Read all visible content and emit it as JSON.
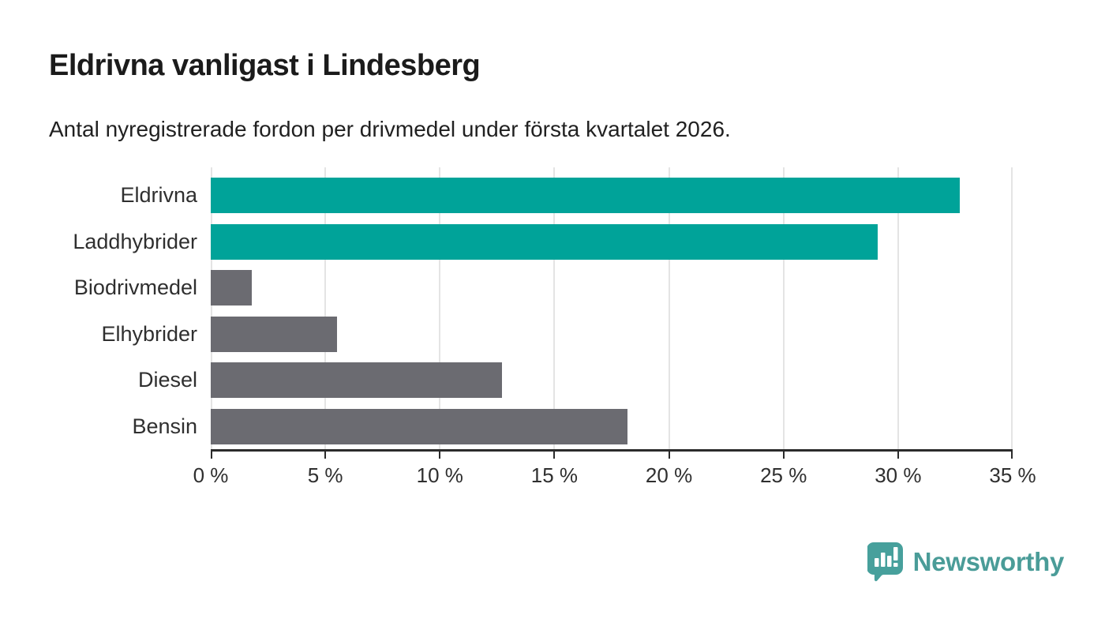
{
  "header": {
    "title": "Eldrivna vanligast i Lindesberg",
    "subtitle": "Antal nyregistrerade fordon per drivmedel under första kvartalet 2026."
  },
  "chart_data": {
    "type": "bar",
    "orientation": "horizontal",
    "title": "Eldrivna vanligast i Lindesberg",
    "subtitle": "Antal nyregistrerade fordon per drivmedel under första kvartalet 2026.",
    "categories": [
      "Eldrivna",
      "Laddhybrider",
      "Biodrivmedel",
      "Elhybrider",
      "Diesel",
      "Bensin"
    ],
    "values": [
      32.7,
      29.1,
      1.8,
      5.5,
      12.7,
      18.2
    ],
    "unit": "%",
    "bar_colors": [
      "#00a399",
      "#00a399",
      "#6b6b71",
      "#6b6b71",
      "#6b6b71",
      "#6b6b71"
    ],
    "xlim": [
      0,
      35
    ],
    "ticks": [
      0,
      5,
      10,
      15,
      20,
      25,
      30,
      35
    ],
    "tick_labels": [
      "0 %",
      "5 %",
      "10 %",
      "15 %",
      "20 %",
      "25 %",
      "30 %",
      "35 %"
    ],
    "grid": true,
    "legend": false,
    "xlabel": "",
    "ylabel": ""
  },
  "colors": {
    "accent_teal": "#00a399",
    "neutral_gray": "#6b6b71",
    "axis": "#2b2b2b",
    "gridline": "#e4e4e4",
    "logo_teal": "#4a9c98"
  },
  "footer": {
    "logo_text": "Newsworthy",
    "logo_icon": "bar-chart-speech-bubble-icon"
  }
}
